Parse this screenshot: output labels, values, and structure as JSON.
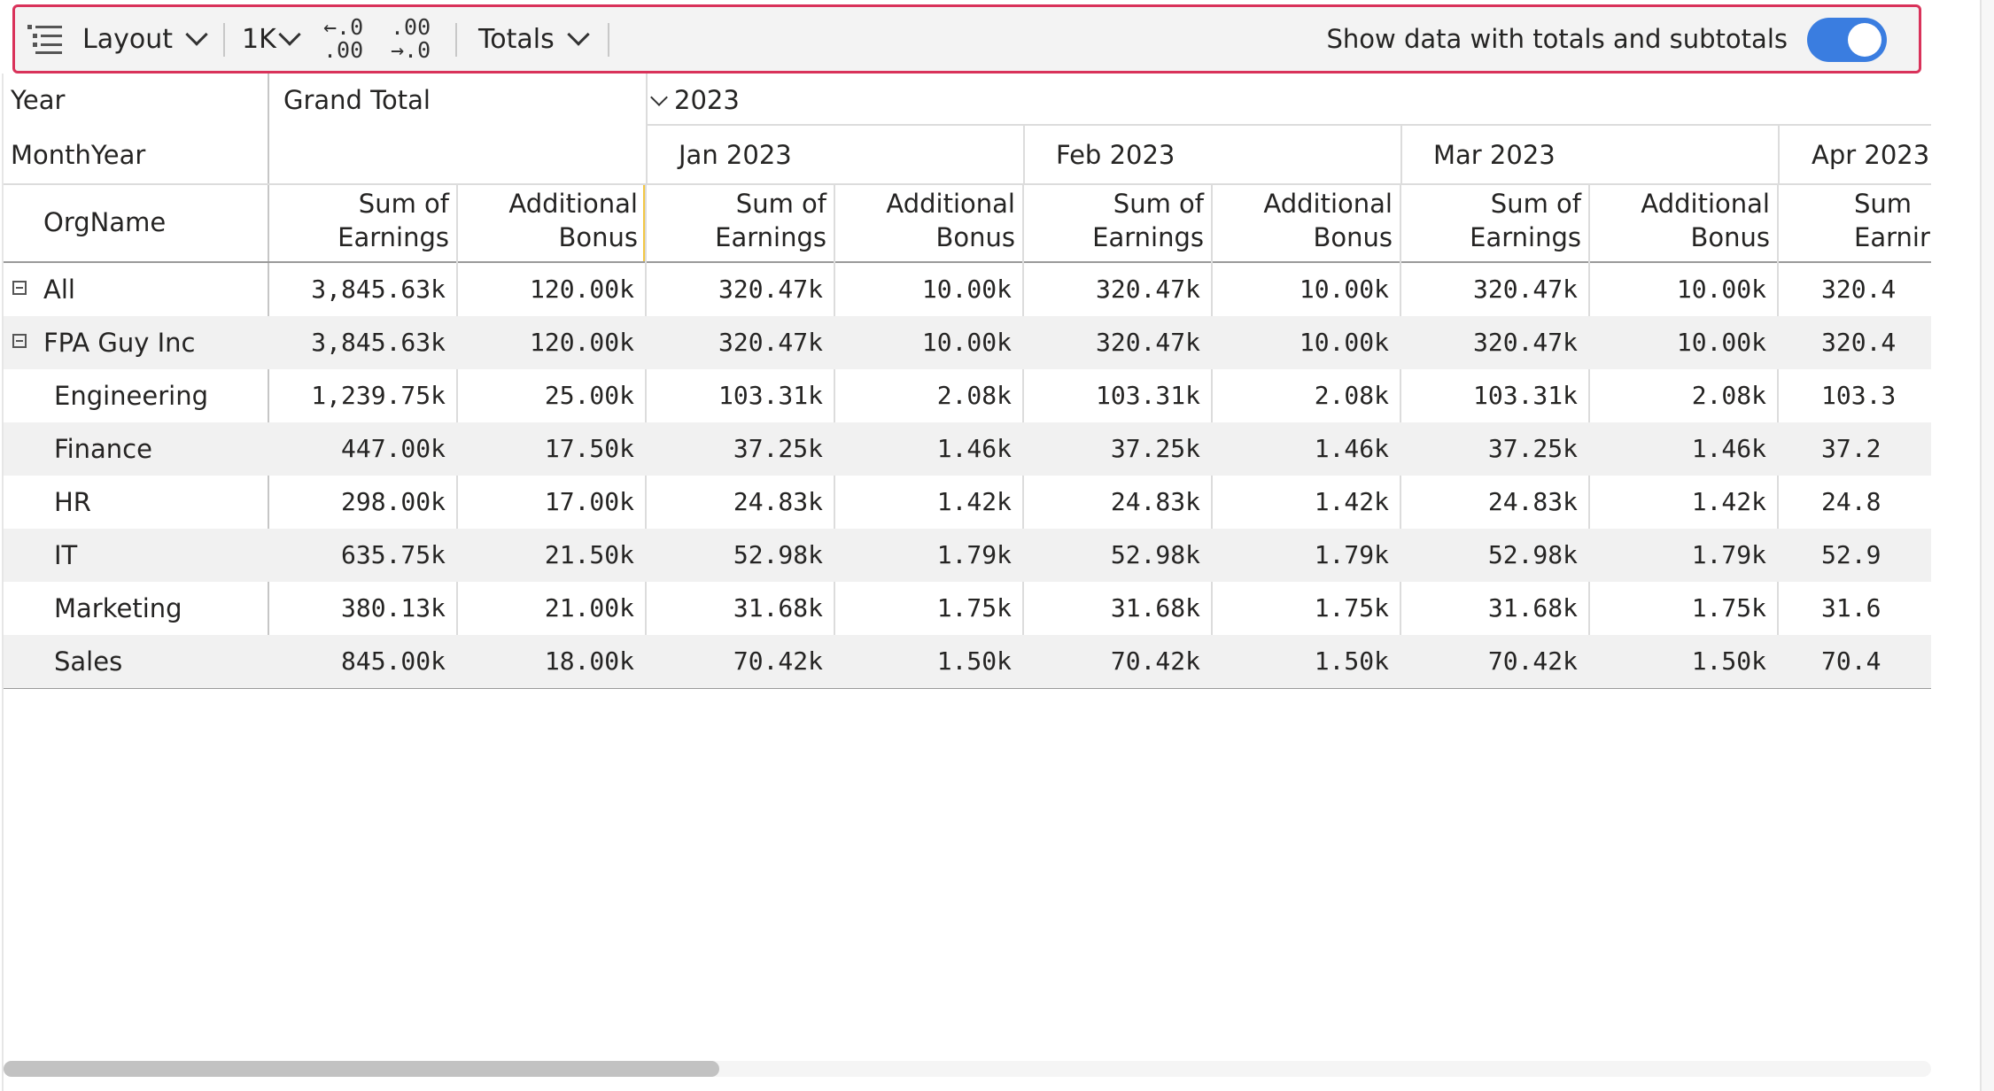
{
  "toolbar": {
    "layout_label": "Layout",
    "units_label": "1K",
    "totals_label": "Totals",
    "increase_decimal": {
      "top": "←.0",
      "bottom": ".00"
    },
    "decrease_decimal": {
      "top": ".00",
      "bottom": "→.0"
    },
    "toggle_label": "Show data with totals and subtotals",
    "toggle_on": true,
    "toggle_color": "#3a7de0"
  },
  "header": {
    "year_label": "Year",
    "monthyear_label": "MonthYear",
    "orgname_label": "OrgName",
    "grand_total": "Grand Total",
    "year_value": "2023",
    "months": [
      "Jan 2023",
      "Feb 2023",
      "Mar 2023",
      "Apr 2023"
    ],
    "measure1": {
      "l1": "Sum of",
      "l2": "Earnings"
    },
    "measure2": {
      "l1": "Additional",
      "l2": "Bonus"
    },
    "measure1_partial": {
      "l1": "Sum",
      "l2": "Earnir"
    }
  },
  "rows": [
    {
      "label": "All",
      "expand": true,
      "gt_earn": "3,845.63k",
      "gt_bonus": "120.00k",
      "m_earn": "320.47k",
      "m_bonus": "10.00k",
      "m_earn_partial": "320.4"
    },
    {
      "label": "FPA Guy Inc",
      "expand": true,
      "gt_earn": "3,845.63k",
      "gt_bonus": "120.00k",
      "m_earn": "320.47k",
      "m_bonus": "10.00k",
      "m_earn_partial": "320.4"
    },
    {
      "label": "Engineering",
      "expand": false,
      "gt_earn": "1,239.75k",
      "gt_bonus": "25.00k",
      "m_earn": "103.31k",
      "m_bonus": "2.08k",
      "m_earn_partial": "103.3"
    },
    {
      "label": "Finance",
      "expand": false,
      "gt_earn": "447.00k",
      "gt_bonus": "17.50k",
      "m_earn": "37.25k",
      "m_bonus": "1.46k",
      "m_earn_partial": "37.2"
    },
    {
      "label": "HR",
      "expand": false,
      "gt_earn": "298.00k",
      "gt_bonus": "17.00k",
      "m_earn": "24.83k",
      "m_bonus": "1.42k",
      "m_earn_partial": "24.8"
    },
    {
      "label": "IT",
      "expand": false,
      "gt_earn": "635.75k",
      "gt_bonus": "21.50k",
      "m_earn": "52.98k",
      "m_bonus": "1.79k",
      "m_earn_partial": "52.9"
    },
    {
      "label": "Marketing",
      "expand": false,
      "gt_earn": "380.13k",
      "gt_bonus": "21.00k",
      "m_earn": "31.68k",
      "m_bonus": "1.75k",
      "m_earn_partial": "31.6"
    },
    {
      "label": "Sales",
      "expand": false,
      "gt_earn": "845.00k",
      "gt_bonus": "18.00k",
      "m_earn": "70.42k",
      "m_bonus": "1.50k",
      "m_earn_partial": "70.4"
    }
  ]
}
